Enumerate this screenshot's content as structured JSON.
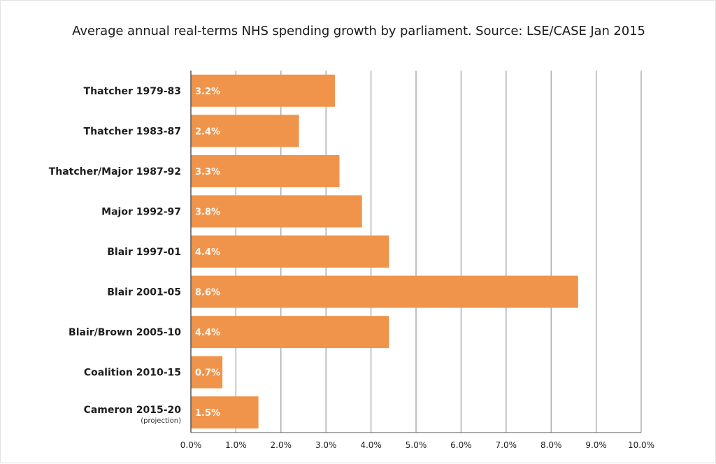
{
  "chart_data": {
    "type": "bar",
    "orientation": "horizontal",
    "title": "Average annual real-terms NHS spending growth by parliament. Source: LSE/CASE Jan 2015",
    "categories": [
      "Thatcher 1979-83",
      "Thatcher 1983-87",
      "Thatcher/Major 1987-92",
      "Major 1992-97",
      "Blair 1997-01",
      "Blair 2001-05",
      "Blair/Brown 2005-10",
      "Coalition 2010-15",
      "Cameron 2015-20"
    ],
    "category_notes": [
      "",
      "",
      "",
      "",
      "",
      "",
      "",
      "",
      "(projection)"
    ],
    "values": [
      3.2,
      2.4,
      3.3,
      3.8,
      4.4,
      8.6,
      4.4,
      0.7,
      1.5
    ],
    "data_labels": [
      "3.2%",
      "2.4%",
      "3.3%",
      "3.8%",
      "4.4%",
      "8.6%",
      "4.4%",
      "0.7%",
      "1.5%"
    ],
    "xlim": [
      0,
      10
    ],
    "x_ticks": [
      0,
      1,
      2,
      3,
      4,
      5,
      6,
      7,
      8,
      9,
      10
    ],
    "x_tick_labels": [
      "0.0%",
      "1.0%",
      "2.0%",
      "3.0%",
      "4.0%",
      "5.0%",
      "6.0%",
      "7.0%",
      "8.0%",
      "9.0%",
      "10.0%"
    ],
    "grid": "vertical",
    "legend": "none",
    "colors": {
      "bar": "#F0944C",
      "grid": "#9a9a9a",
      "axis": "#555555",
      "data_label": "#FFFFFF"
    }
  }
}
